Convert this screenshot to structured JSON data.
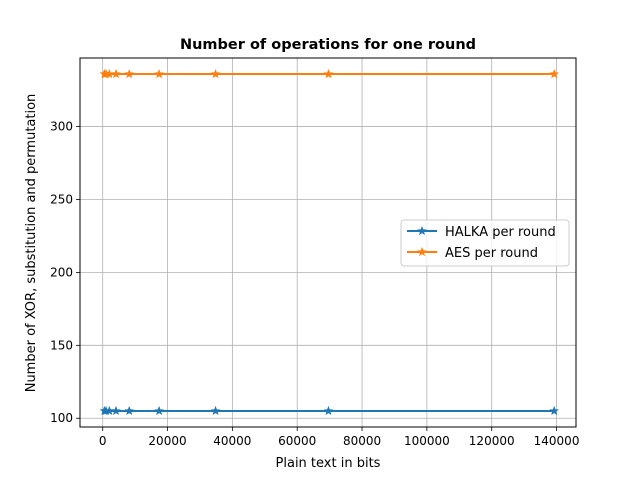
{
  "chart_data": {
    "type": "line",
    "title": "Number of operations for one round",
    "xlabel": "Plain text in bits",
    "ylabel": "Number of XOR, substitution and permutation",
    "xlim": [
      -7000,
      146000
    ],
    "ylim": [
      94,
      347
    ],
    "xticks": [
      0,
      20000,
      40000,
      60000,
      80000,
      100000,
      120000,
      140000
    ],
    "yticks": [
      100,
      150,
      200,
      250,
      300
    ],
    "grid": true,
    "legend_position": "center-right",
    "x": [
      512,
      1024,
      2048,
      4096,
      8192,
      17408,
      34816,
      69632,
      139264
    ],
    "series": [
      {
        "name": "HALKA per round",
        "color": "#1f77b4",
        "marker": "star",
        "values": [
          105,
          105,
          105,
          105,
          105,
          105,
          105,
          105,
          105
        ]
      },
      {
        "name": "AES per round",
        "color": "#ff7f0e",
        "marker": "star",
        "values": [
          336,
          336,
          336,
          336,
          336,
          336,
          336,
          336,
          336
        ]
      }
    ]
  }
}
